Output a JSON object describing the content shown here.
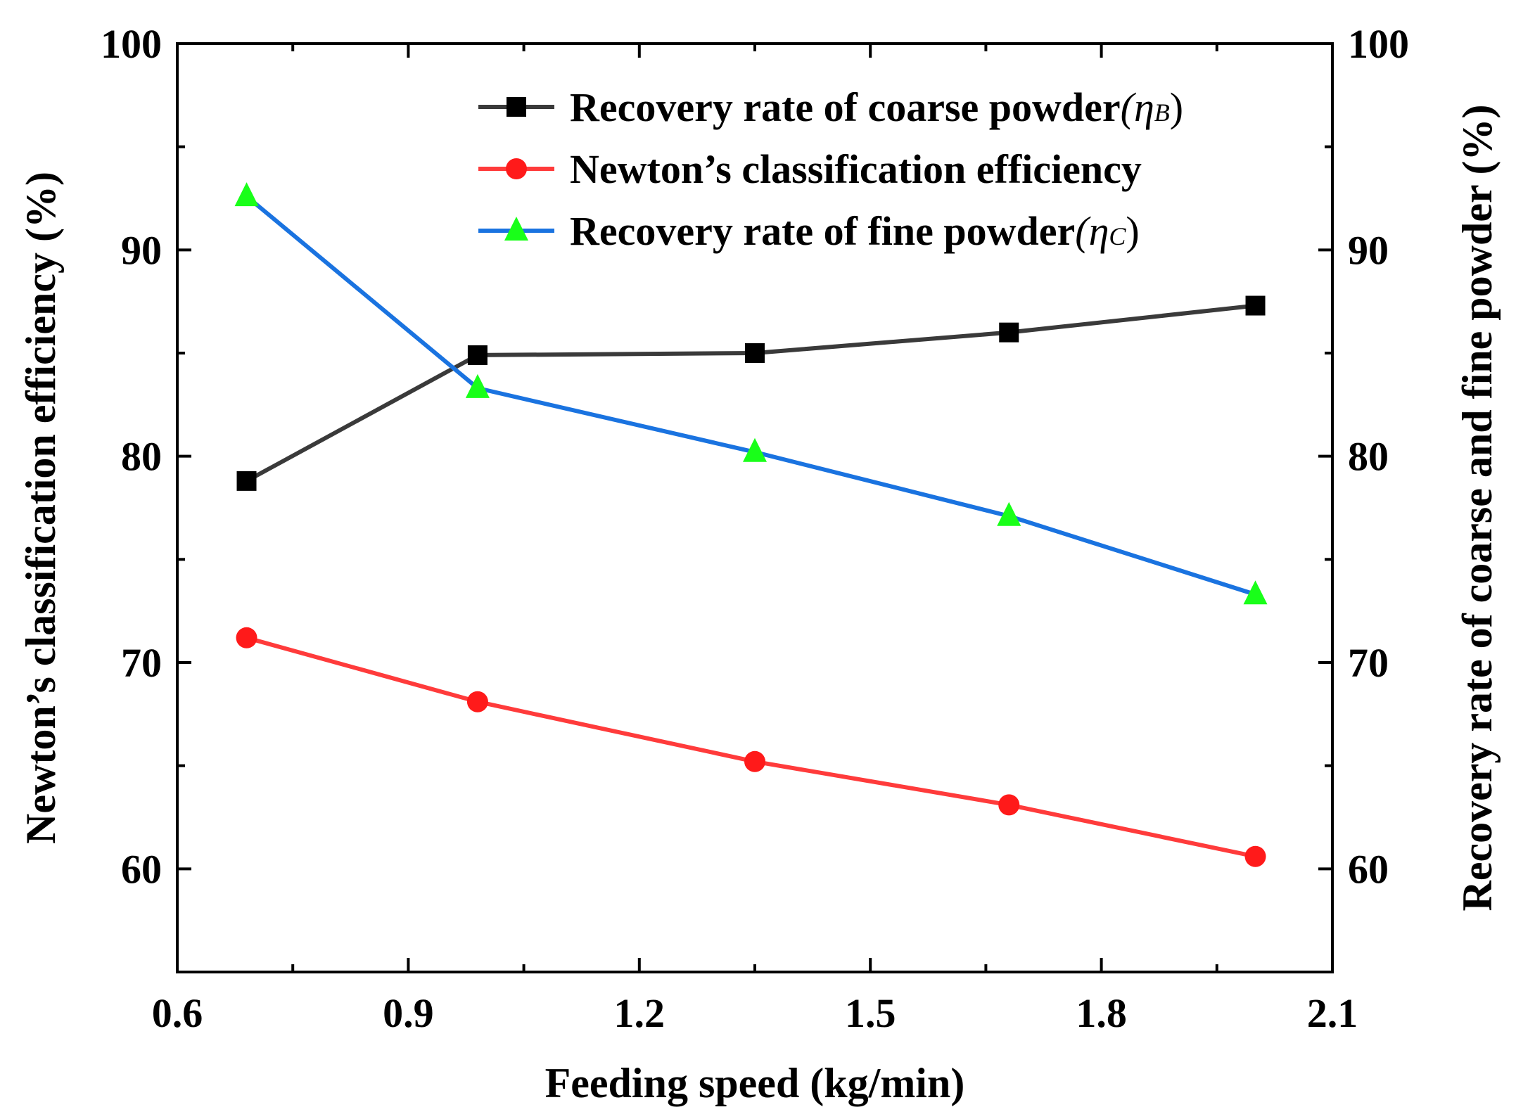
{
  "chart_data": {
    "type": "line",
    "x": [
      0.69,
      0.99,
      1.35,
      1.68,
      2.0
    ],
    "series": [
      {
        "name": "Recovery rate of coarse powder",
        "symbol": "ηB",
        "marker": "square",
        "color": "#3a3a3a",
        "marker_color": "#000000",
        "axis": "right",
        "values": [
          78.8,
          84.9,
          85.0,
          86.0,
          87.3
        ]
      },
      {
        "name": "Newton’s classification efficiency",
        "symbol": "",
        "marker": "circle",
        "color": "#ff3b3b",
        "marker_color": "#ff1a1a",
        "axis": "left",
        "values": [
          71.2,
          68.1,
          65.2,
          63.1,
          60.6
        ]
      },
      {
        "name": "Recovery rate of fine powder",
        "symbol": "ηC",
        "marker": "triangle",
        "color": "#1a73e0",
        "marker_color": "#19ff19",
        "axis": "right",
        "values": [
          92.6,
          83.3,
          80.2,
          77.1,
          73.3
        ]
      }
    ],
    "xlabel": "Feeding speed (kg/min)",
    "ylabel": "Newton’s classification efficiency (%)",
    "ylabel_right": "Recovery rate of coarse and fine powder (%)",
    "xlim": [
      0.6,
      2.1
    ],
    "ylim": [
      55,
      100
    ],
    "xticks": [
      "0.6",
      "0.9",
      "1.2",
      "1.5",
      "1.8",
      "2.1"
    ],
    "xtick_values": [
      0.6,
      0.9,
      1.2,
      1.5,
      1.8,
      2.1
    ],
    "yticks": [
      "60",
      "70",
      "80",
      "90",
      "100"
    ],
    "ytick_values": [
      60,
      70,
      80,
      90,
      100
    ],
    "legend_position": "top-right",
    "grid": false
  }
}
